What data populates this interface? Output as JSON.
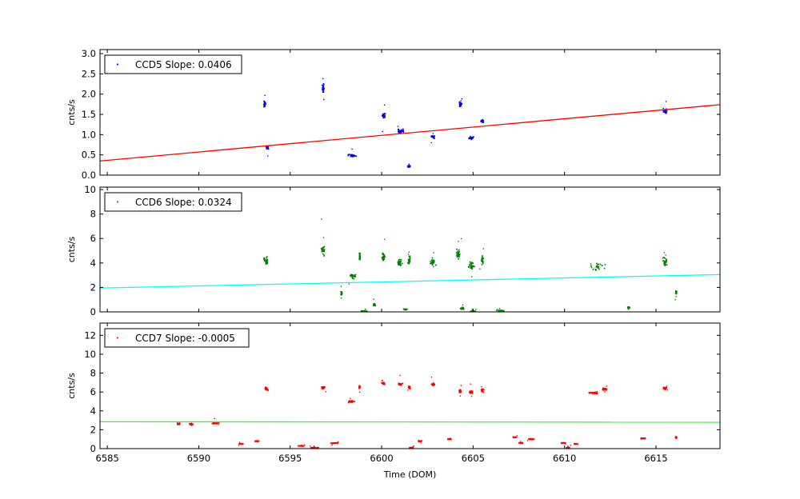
{
  "chart_data": [
    {
      "type": "scatter",
      "series": [
        {
          "name": "CCD5 Slope: 0.0406",
          "color": "#0000ff"
        }
      ],
      "legend": {
        "label": "CCD5 Slope: 0.0406",
        "placement": "top-left"
      },
      "ylabel": "cnts/s",
      "xlim": [
        6584.6,
        6618.5
      ],
      "ylim": [
        0,
        3.1
      ],
      "yticks": [
        0.0,
        0.5,
        1.0,
        1.5,
        2.0,
        2.5,
        3.0
      ],
      "ytick_labels": [
        "0.0",
        "0.5",
        "1.0",
        "1.5",
        "2.0",
        "2.5",
        "3.0"
      ],
      "fit_line": {
        "x": [
          6584.6,
          6618.5
        ],
        "y": [
          0.35,
          1.74
        ],
        "color": "#ff0000"
      },
      "clusters": [
        {
          "x": 6593.6,
          "y": 1.75,
          "dx": 0.12,
          "dy": 0.1
        },
        {
          "x": 6593.75,
          "y": 0.68,
          "dx": 0.1,
          "dy": 0.05
        },
        {
          "x": 6596.8,
          "y": 2.15,
          "dx": 0.06,
          "dy": 0.15
        },
        {
          "x": 6598.4,
          "y": 0.48,
          "dx": 0.35,
          "dy": 0.04
        },
        {
          "x": 6600.1,
          "y": 1.48,
          "dx": 0.12,
          "dy": 0.08
        },
        {
          "x": 6601.0,
          "y": 1.1,
          "dx": 0.25,
          "dy": 0.06
        },
        {
          "x": 6601.5,
          "y": 0.22,
          "dx": 0.1,
          "dy": 0.03
        },
        {
          "x": 6602.8,
          "y": 0.95,
          "dx": 0.15,
          "dy": 0.05
        },
        {
          "x": 6604.3,
          "y": 1.75,
          "dx": 0.1,
          "dy": 0.1
        },
        {
          "x": 6604.9,
          "y": 0.92,
          "dx": 0.15,
          "dy": 0.05
        },
        {
          "x": 6605.5,
          "y": 1.33,
          "dx": 0.1,
          "dy": 0.05
        },
        {
          "x": 6615.5,
          "y": 1.58,
          "dx": 0.15,
          "dy": 0.07
        }
      ]
    },
    {
      "type": "scatter",
      "series": [
        {
          "name": "CCD6 Slope: 0.0324",
          "color": "#008000"
        }
      ],
      "legend": {
        "label": "CCD6 Slope: 0.0324",
        "placement": "top-left"
      },
      "ylabel": "cnts/s",
      "xlim": [
        6584.6,
        6618.5
      ],
      "ylim": [
        0,
        10.2
      ],
      "yticks": [
        0,
        2,
        4,
        6,
        8,
        10
      ],
      "ytick_labels": [
        "0",
        "2",
        "4",
        "6",
        "8",
        "10"
      ],
      "fit_line": {
        "x": [
          6584.6,
          6618.5
        ],
        "y": [
          1.95,
          3.05
        ],
        "color": "#00ffff"
      },
      "clusters": [
        {
          "x": 6593.7,
          "y": 4.2,
          "dx": 0.18,
          "dy": 0.45
        },
        {
          "x": 6596.8,
          "y": 5.0,
          "dx": 0.12,
          "dy": 0.5
        },
        {
          "x": 6597.8,
          "y": 1.5,
          "dx": 0.05,
          "dy": 0.25
        },
        {
          "x": 6598.4,
          "y": 2.9,
          "dx": 0.25,
          "dy": 0.3
        },
        {
          "x": 6598.8,
          "y": 4.5,
          "dx": 0.05,
          "dy": 0.4
        },
        {
          "x": 6599.0,
          "y": 0.05,
          "dx": 0.25,
          "dy": 0.05
        },
        {
          "x": 6599.6,
          "y": 0.6,
          "dx": 0.08,
          "dy": 0.15
        },
        {
          "x": 6600.1,
          "y": 4.5,
          "dx": 0.12,
          "dy": 0.45
        },
        {
          "x": 6601.0,
          "y": 4.0,
          "dx": 0.2,
          "dy": 0.4
        },
        {
          "x": 6601.3,
          "y": 0.2,
          "dx": 0.12,
          "dy": 0.05
        },
        {
          "x": 6601.5,
          "y": 4.2,
          "dx": 0.08,
          "dy": 0.5
        },
        {
          "x": 6602.8,
          "y": 4.0,
          "dx": 0.2,
          "dy": 0.5
        },
        {
          "x": 6604.2,
          "y": 4.8,
          "dx": 0.15,
          "dy": 0.6
        },
        {
          "x": 6604.4,
          "y": 0.3,
          "dx": 0.12,
          "dy": 0.1
        },
        {
          "x": 6604.9,
          "y": 3.8,
          "dx": 0.2,
          "dy": 0.45
        },
        {
          "x": 6605.0,
          "y": 0.05,
          "dx": 0.2,
          "dy": 0.05
        },
        {
          "x": 6605.5,
          "y": 4.3,
          "dx": 0.1,
          "dy": 0.5
        },
        {
          "x": 6606.5,
          "y": 0.1,
          "dx": 0.3,
          "dy": 0.05
        },
        {
          "x": 6611.8,
          "y": 3.7,
          "dx": 0.5,
          "dy": 0.45
        },
        {
          "x": 6613.5,
          "y": 0.35,
          "dx": 0.08,
          "dy": 0.1
        },
        {
          "x": 6615.5,
          "y": 4.1,
          "dx": 0.15,
          "dy": 0.5
        },
        {
          "x": 6616.1,
          "y": 1.6,
          "dx": 0.05,
          "dy": 0.2
        }
      ]
    },
    {
      "type": "scatter",
      "series": [
        {
          "name": "CCD7 Slope: -0.0005",
          "color": "#ff0000"
        }
      ],
      "legend": {
        "label": "CCD7 Slope: -0.0005",
        "placement": "top-left"
      },
      "ylabel": "cnts/s",
      "xlabel": "Time (DOM)",
      "xlim": [
        6584.6,
        6618.5
      ],
      "ylim": [
        0,
        13.3
      ],
      "yticks": [
        0,
        2,
        4,
        6,
        8,
        10,
        12
      ],
      "ytick_labels": [
        "0",
        "2",
        "4",
        "6",
        "8",
        "10",
        "12"
      ],
      "xticks": [
        6585,
        6590,
        6595,
        6600,
        6605,
        6610,
        6615
      ],
      "xtick_labels": [
        "6585",
        "6590",
        "6595",
        "6600",
        "6605",
        "6610",
        "6615"
      ],
      "fit_line": {
        "x": [
          6584.6,
          6618.5
        ],
        "y": [
          2.85,
          2.8
        ],
        "color": "#44ee44"
      },
      "clusters": [
        {
          "x": 6588.9,
          "y": 2.6,
          "dx": 0.1,
          "dy": 0.08
        },
        {
          "x": 6589.6,
          "y": 2.6,
          "dx": 0.15,
          "dy": 0.08
        },
        {
          "x": 6590.9,
          "y": 2.7,
          "dx": 0.25,
          "dy": 0.1
        },
        {
          "x": 6592.3,
          "y": 0.5,
          "dx": 0.15,
          "dy": 0.05
        },
        {
          "x": 6593.2,
          "y": 0.8,
          "dx": 0.15,
          "dy": 0.05
        },
        {
          "x": 6593.7,
          "y": 6.3,
          "dx": 0.15,
          "dy": 0.2
        },
        {
          "x": 6595.6,
          "y": 0.3,
          "dx": 0.2,
          "dy": 0.05
        },
        {
          "x": 6596.3,
          "y": 0.1,
          "dx": 0.3,
          "dy": 0.05
        },
        {
          "x": 6596.8,
          "y": 6.5,
          "dx": 0.12,
          "dy": 0.2
        },
        {
          "x": 6597.4,
          "y": 0.6,
          "dx": 0.35,
          "dy": 0.05
        },
        {
          "x": 6598.3,
          "y": 5.0,
          "dx": 0.25,
          "dy": 0.15
        },
        {
          "x": 6598.8,
          "y": 6.5,
          "dx": 0.05,
          "dy": 0.2
        },
        {
          "x": 6600.1,
          "y": 6.9,
          "dx": 0.12,
          "dy": 0.2
        },
        {
          "x": 6601.0,
          "y": 6.8,
          "dx": 0.2,
          "dy": 0.2
        },
        {
          "x": 6601.5,
          "y": 6.5,
          "dx": 0.08,
          "dy": 0.2
        },
        {
          "x": 6601.6,
          "y": 0.1,
          "dx": 0.15,
          "dy": 0.05
        },
        {
          "x": 6602.1,
          "y": 0.8,
          "dx": 0.12,
          "dy": 0.05
        },
        {
          "x": 6602.8,
          "y": 6.8,
          "dx": 0.15,
          "dy": 0.2
        },
        {
          "x": 6603.7,
          "y": 1.0,
          "dx": 0.15,
          "dy": 0.05
        },
        {
          "x": 6604.3,
          "y": 6.1,
          "dx": 0.08,
          "dy": 0.2
        },
        {
          "x": 6604.9,
          "y": 6.0,
          "dx": 0.15,
          "dy": 0.2
        },
        {
          "x": 6605.5,
          "y": 6.2,
          "dx": 0.1,
          "dy": 0.2
        },
        {
          "x": 6607.3,
          "y": 1.2,
          "dx": 0.15,
          "dy": 0.05
        },
        {
          "x": 6607.6,
          "y": 0.6,
          "dx": 0.15,
          "dy": 0.05
        },
        {
          "x": 6608.2,
          "y": 1.0,
          "dx": 0.2,
          "dy": 0.08
        },
        {
          "x": 6609.9,
          "y": 0.6,
          "dx": 0.2,
          "dy": 0.05
        },
        {
          "x": 6610.2,
          "y": 0.1,
          "dx": 0.15,
          "dy": 0.05
        },
        {
          "x": 6610.6,
          "y": 0.5,
          "dx": 0.15,
          "dy": 0.05
        },
        {
          "x": 6611.6,
          "y": 5.9,
          "dx": 0.35,
          "dy": 0.15
        },
        {
          "x": 6612.2,
          "y": 6.3,
          "dx": 0.2,
          "dy": 0.2
        },
        {
          "x": 6614.3,
          "y": 1.1,
          "dx": 0.2,
          "dy": 0.05
        },
        {
          "x": 6615.5,
          "y": 6.4,
          "dx": 0.15,
          "dy": 0.2
        },
        {
          "x": 6616.1,
          "y": 1.2,
          "dx": 0.05,
          "dy": 0.08
        }
      ]
    }
  ]
}
